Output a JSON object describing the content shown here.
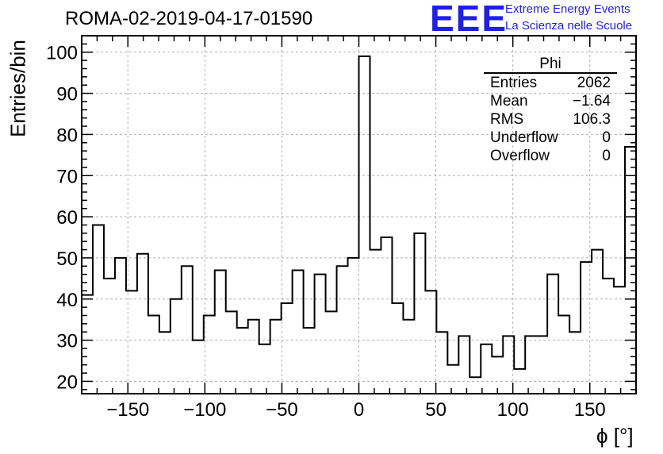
{
  "chart_title": "ROMA-02-2019-04-17-01590",
  "logo": {
    "mark": "EEE",
    "line1": "Extreme Energy Events",
    "line2": "La Scienza nelle Scuole",
    "color": "#1f1fe6"
  },
  "stats": {
    "title": "Phi",
    "rows": [
      {
        "label": "Entries",
        "value": "2062"
      },
      {
        "label": "Mean",
        "value": "−1.64"
      },
      {
        "label": "RMS",
        "value": "106.3"
      },
      {
        "label": "Underflow",
        "value": "0"
      },
      {
        "label": "Overflow",
        "value": "0"
      }
    ]
  },
  "chart_data": {
    "type": "bar",
    "subtype": "histogram-step",
    "title": "ROMA-02-2019-04-17-01590",
    "xlabel": "ϕ [°]",
    "ylabel": "Entries/bin",
    "xlim": [
      -180,
      180
    ],
    "ylim": [
      17,
      104
    ],
    "bin_width": 7.2,
    "bin_edges_start": -180,
    "values": [
      41,
      58,
      45,
      50,
      42,
      51,
      36,
      32,
      40,
      48,
      30,
      36,
      47,
      37,
      33,
      35,
      29,
      35,
      39,
      47,
      33,
      46,
      37,
      48,
      50,
      99,
      52,
      55,
      39,
      35,
      56,
      42,
      32,
      24,
      31,
      21,
      29,
      26,
      31,
      23,
      31,
      31,
      46,
      36,
      32,
      49,
      52,
      45,
      43,
      77
    ],
    "xticks": [
      -150,
      -100,
      -50,
      0,
      50,
      100,
      150
    ],
    "xtick_labels": [
      "−150",
      "−100",
      "−50",
      "0",
      "50",
      "100",
      "150"
    ],
    "yticks": [
      20,
      30,
      40,
      50,
      60,
      70,
      80,
      90,
      100
    ],
    "ytick_labels": [
      "20",
      "30",
      "40",
      "50",
      "60",
      "70",
      "80",
      "90",
      "100"
    ],
    "grid": true,
    "line_color": "#000000",
    "grid_color": "#b0b0b0"
  }
}
